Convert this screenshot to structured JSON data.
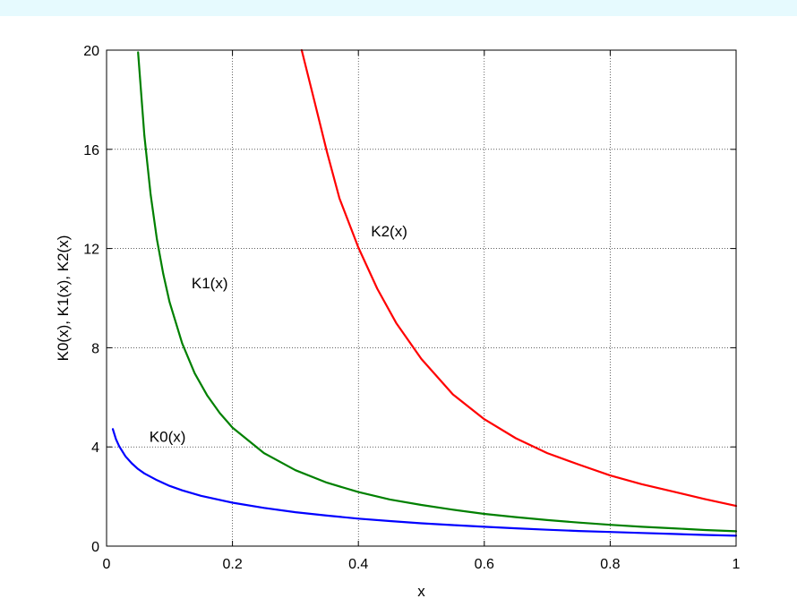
{
  "colors": {
    "banner": "#e6fafe"
  },
  "chart_data": {
    "type": "line",
    "title": "",
    "xlabel": "x",
    "ylabel": "K0(x), K1(x), K2(x)",
    "xlim": [
      0,
      1
    ],
    "ylim": [
      0,
      20
    ],
    "xticks": [
      0,
      0.2,
      0.4,
      0.6,
      0.8,
      1
    ],
    "xtick_labels": [
      "0",
      "0.2",
      "0.4",
      "0.6",
      "0.8",
      "1"
    ],
    "yticks": [
      0,
      4,
      8,
      12,
      16,
      20
    ],
    "ytick_labels": [
      "0",
      "4",
      "8",
      "12",
      "16",
      "20"
    ],
    "grid": true,
    "series": [
      {
        "color": "#0000ff",
        "x": [
          0.01,
          0.015,
          0.02,
          0.03,
          0.04,
          0.05,
          0.06,
          0.08,
          0.1,
          0.12,
          0.15,
          0.2,
          0.25,
          0.3,
          0.35,
          0.4,
          0.45,
          0.5,
          0.55,
          0.6,
          0.65,
          0.7,
          0.75,
          0.8,
          0.85,
          0.9,
          0.95,
          1.0
        ],
        "values": [
          4.72,
          4.31,
          4.03,
          3.62,
          3.34,
          3.11,
          2.93,
          2.66,
          2.43,
          2.25,
          2.03,
          1.75,
          1.54,
          1.37,
          1.23,
          1.11,
          1.01,
          0.92,
          0.85,
          0.78,
          0.72,
          0.66,
          0.61,
          0.57,
          0.53,
          0.49,
          0.45,
          0.42
        ]
      },
      {
        "color": "#008000",
        "x": [
          0.05,
          0.06,
          0.07,
          0.08,
          0.09,
          0.1,
          0.12,
          0.14,
          0.16,
          0.18,
          0.2,
          0.25,
          0.3,
          0.35,
          0.4,
          0.45,
          0.5,
          0.55,
          0.6,
          0.65,
          0.7,
          0.75,
          0.8,
          0.85,
          0.9,
          0.95,
          1.0
        ],
        "values": [
          19.91,
          16.56,
          14.18,
          12.38,
          10.98,
          9.85,
          8.18,
          6.97,
          6.07,
          5.36,
          4.78,
          3.75,
          3.06,
          2.56,
          2.18,
          1.88,
          1.66,
          1.47,
          1.3,
          1.17,
          1.05,
          0.95,
          0.86,
          0.78,
          0.72,
          0.65,
          0.6
        ]
      },
      {
        "color": "#ff0000",
        "x": [
          0.31,
          0.33,
          0.35,
          0.37,
          0.4,
          0.43,
          0.46,
          0.5,
          0.55,
          0.6,
          0.65,
          0.7,
          0.75,
          0.8,
          0.85,
          0.9,
          0.95,
          1.0
        ],
        "values": [
          20.0,
          17.96,
          15.91,
          14.02,
          12.04,
          10.38,
          9.0,
          7.55,
          6.12,
          5.12,
          4.35,
          3.75,
          3.29,
          2.85,
          2.5,
          2.2,
          1.9,
          1.62
        ]
      }
    ],
    "annotations": [
      {
        "text": "K2(x)",
        "x": 0.42,
        "y": 12.5
      },
      {
        "text": "K1(x)",
        "x": 0.135,
        "y": 10.4
      },
      {
        "text": "K0(x)",
        "x": 0.068,
        "y": 4.2
      }
    ]
  }
}
